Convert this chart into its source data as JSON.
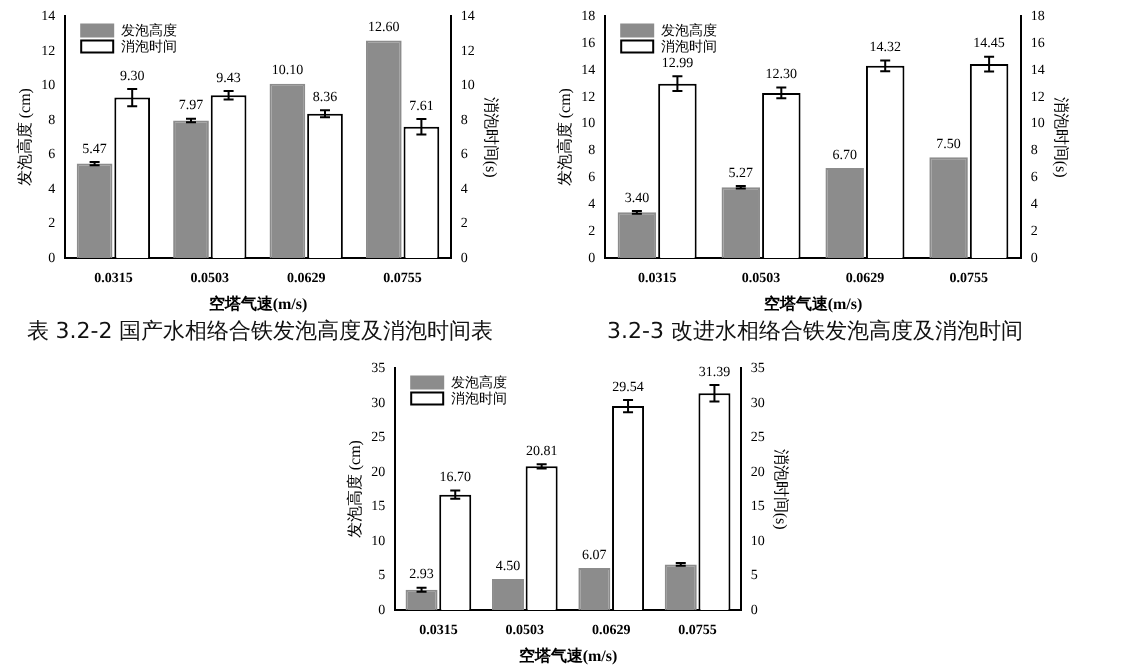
{
  "chart_data": [
    {
      "type": "bar",
      "categories": [
        "0.0315",
        "0.0503",
        "0.0629",
        "0.0755"
      ],
      "xlabel": "空塔气速(m/s)",
      "ylabel": "发泡高度 (cm)",
      "y2label": "消泡时间(s)",
      "ylim": [
        0,
        14
      ],
      "yticks": [
        0,
        2,
        4,
        6,
        8,
        10,
        12,
        14
      ],
      "y2lim": [
        0,
        14
      ],
      "y2ticks": [
        0,
        2,
        4,
        6,
        8,
        10,
        12,
        14
      ],
      "legend": "top left",
      "annotations": [
        "表 3.2-2 国产水相络合铁发泡高度及消泡时间表"
      ],
      "series": [
        {
          "name": "发泡高度",
          "color": "#8c8c8c",
          "values": [
            5.47,
            7.97,
            10.1,
            12.6
          ],
          "value_labels": [
            "5.47",
            "7.97",
            "10.10",
            "12.60"
          ],
          "errors": [
            0.1,
            0.1,
            null,
            null
          ]
        },
        {
          "name": "消泡时间",
          "color": "#000000",
          "values": [
            9.3,
            9.43,
            8.36,
            7.61
          ],
          "value_labels": [
            "9.30",
            "9.43",
            "8.36",
            "7.61"
          ],
          "errors": [
            0.5,
            0.25,
            0.2,
            0.45
          ]
        }
      ]
    },
    {
      "type": "bar",
      "categories": [
        "0.0315",
        "0.0503",
        "0.0629",
        "0.0755"
      ],
      "xlabel": "空塔气速(m/s)",
      "ylabel": "发泡高度 (cm)",
      "y2label": "消泡时间(s)",
      "ylim": [
        0,
        18
      ],
      "yticks": [
        0,
        2,
        4,
        6,
        8,
        10,
        12,
        14,
        16,
        18
      ],
      "y2lim": [
        0,
        18
      ],
      "y2ticks": [
        0,
        2,
        4,
        6,
        8,
        10,
        12,
        14,
        16,
        18
      ],
      "legend": "top left",
      "annotations": [
        "3.2-3 改进水相络合铁发泡高度及消泡时间"
      ],
      "series": [
        {
          "name": "发泡高度",
          "color": "#8c8c8c",
          "values": [
            3.4,
            5.27,
            6.7,
            7.5
          ],
          "value_labels": [
            "3.40",
            "5.27",
            "6.70",
            "7.50"
          ],
          "errors": [
            0.1,
            0.1,
            null,
            null
          ]
        },
        {
          "name": "消泡时间",
          "color": "#000000",
          "values": [
            12.99,
            12.3,
            14.32,
            14.45
          ],
          "value_labels": [
            "12.99",
            "12.30",
            "14.32",
            "14.45"
          ],
          "errors": [
            0.55,
            0.4,
            0.4,
            0.55
          ]
        }
      ]
    },
    {
      "type": "bar",
      "categories": [
        "0.0315",
        "0.0503",
        "0.0629",
        "0.0755"
      ],
      "xlabel": "空塔气速(m/s)",
      "ylabel": "发泡高度 (cm)",
      "y2label": "消泡时间(s)",
      "ylim": [
        0,
        35
      ],
      "yticks": [
        0,
        5,
        10,
        15,
        20,
        25,
        30,
        35
      ],
      "y2lim": [
        0,
        35
      ],
      "y2ticks": [
        0,
        5,
        10,
        15,
        20,
        25,
        30,
        35
      ],
      "legend": "top left",
      "series": [
        {
          "name": "发泡高度",
          "color": "#8c8c8c",
          "values": [
            2.93,
            4.5,
            6.07,
            6.6
          ],
          "value_labels": [
            "2.93",
            "4.50",
            "6.07",
            null
          ],
          "errors": [
            0.3,
            null,
            null,
            0.2
          ]
        },
        {
          "name": "消泡时间",
          "color": "#000000",
          "values": [
            16.7,
            20.81,
            29.54,
            31.39
          ],
          "value_labels": [
            "16.70",
            "20.81",
            "29.54",
            "31.39"
          ],
          "errors": [
            0.6,
            0.3,
            0.9,
            1.2
          ]
        }
      ]
    }
  ]
}
